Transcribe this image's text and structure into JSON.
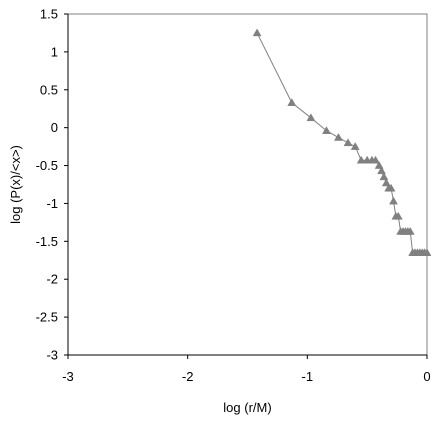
{
  "chart_data": {
    "type": "line",
    "title": "",
    "xlabel": "log (r/M)",
    "ylabel": "log (P(x)/<x>)",
    "xlim": [
      -3,
      0
    ],
    "ylim": [
      -3,
      1.5
    ],
    "x_ticks": [
      -3,
      -2,
      -1,
      0
    ],
    "x_tick_labels": [
      "-3",
      "-2",
      "-1",
      "0"
    ],
    "y_ticks": [
      1.5,
      1,
      0.5,
      0,
      -0.5,
      -1,
      -1.5,
      -2,
      -2.5,
      -3
    ],
    "y_tick_labels": [
      "1.5",
      "1",
      "0.5",
      "0",
      "-0.5",
      "-1",
      "-1.5",
      "-2",
      "-2.5",
      "-3"
    ],
    "grid": false,
    "legend": "none",
    "series": [
      {
        "marker": "triangle",
        "color": "#808080",
        "x": [
          -1.42,
          -1.13,
          -0.97,
          -0.84,
          -0.74,
          -0.66,
          -0.6,
          -0.55,
          -0.5,
          -0.46,
          -0.43,
          -0.4,
          -0.38,
          -0.36,
          -0.34,
          -0.32,
          -0.3,
          -0.28,
          -0.26,
          -0.24,
          -0.22,
          -0.2,
          -0.18,
          -0.16,
          -0.14,
          -0.12,
          -0.1,
          -0.08,
          -0.06,
          -0.04,
          -0.02,
          0
        ],
        "y": [
          1.25,
          0.33,
          0.13,
          -0.04,
          -0.13,
          -0.2,
          -0.25,
          -0.43,
          -0.43,
          -0.43,
          -0.43,
          -0.5,
          -0.57,
          -0.65,
          -0.73,
          -0.8,
          -0.8,
          -0.97,
          -1.17,
          -1.17,
          -1.37,
          -1.37,
          -1.37,
          -1.37,
          -1.37,
          -1.65,
          -1.65,
          -1.65,
          -1.65,
          -1.65,
          -1.65,
          -1.65
        ]
      }
    ]
  }
}
